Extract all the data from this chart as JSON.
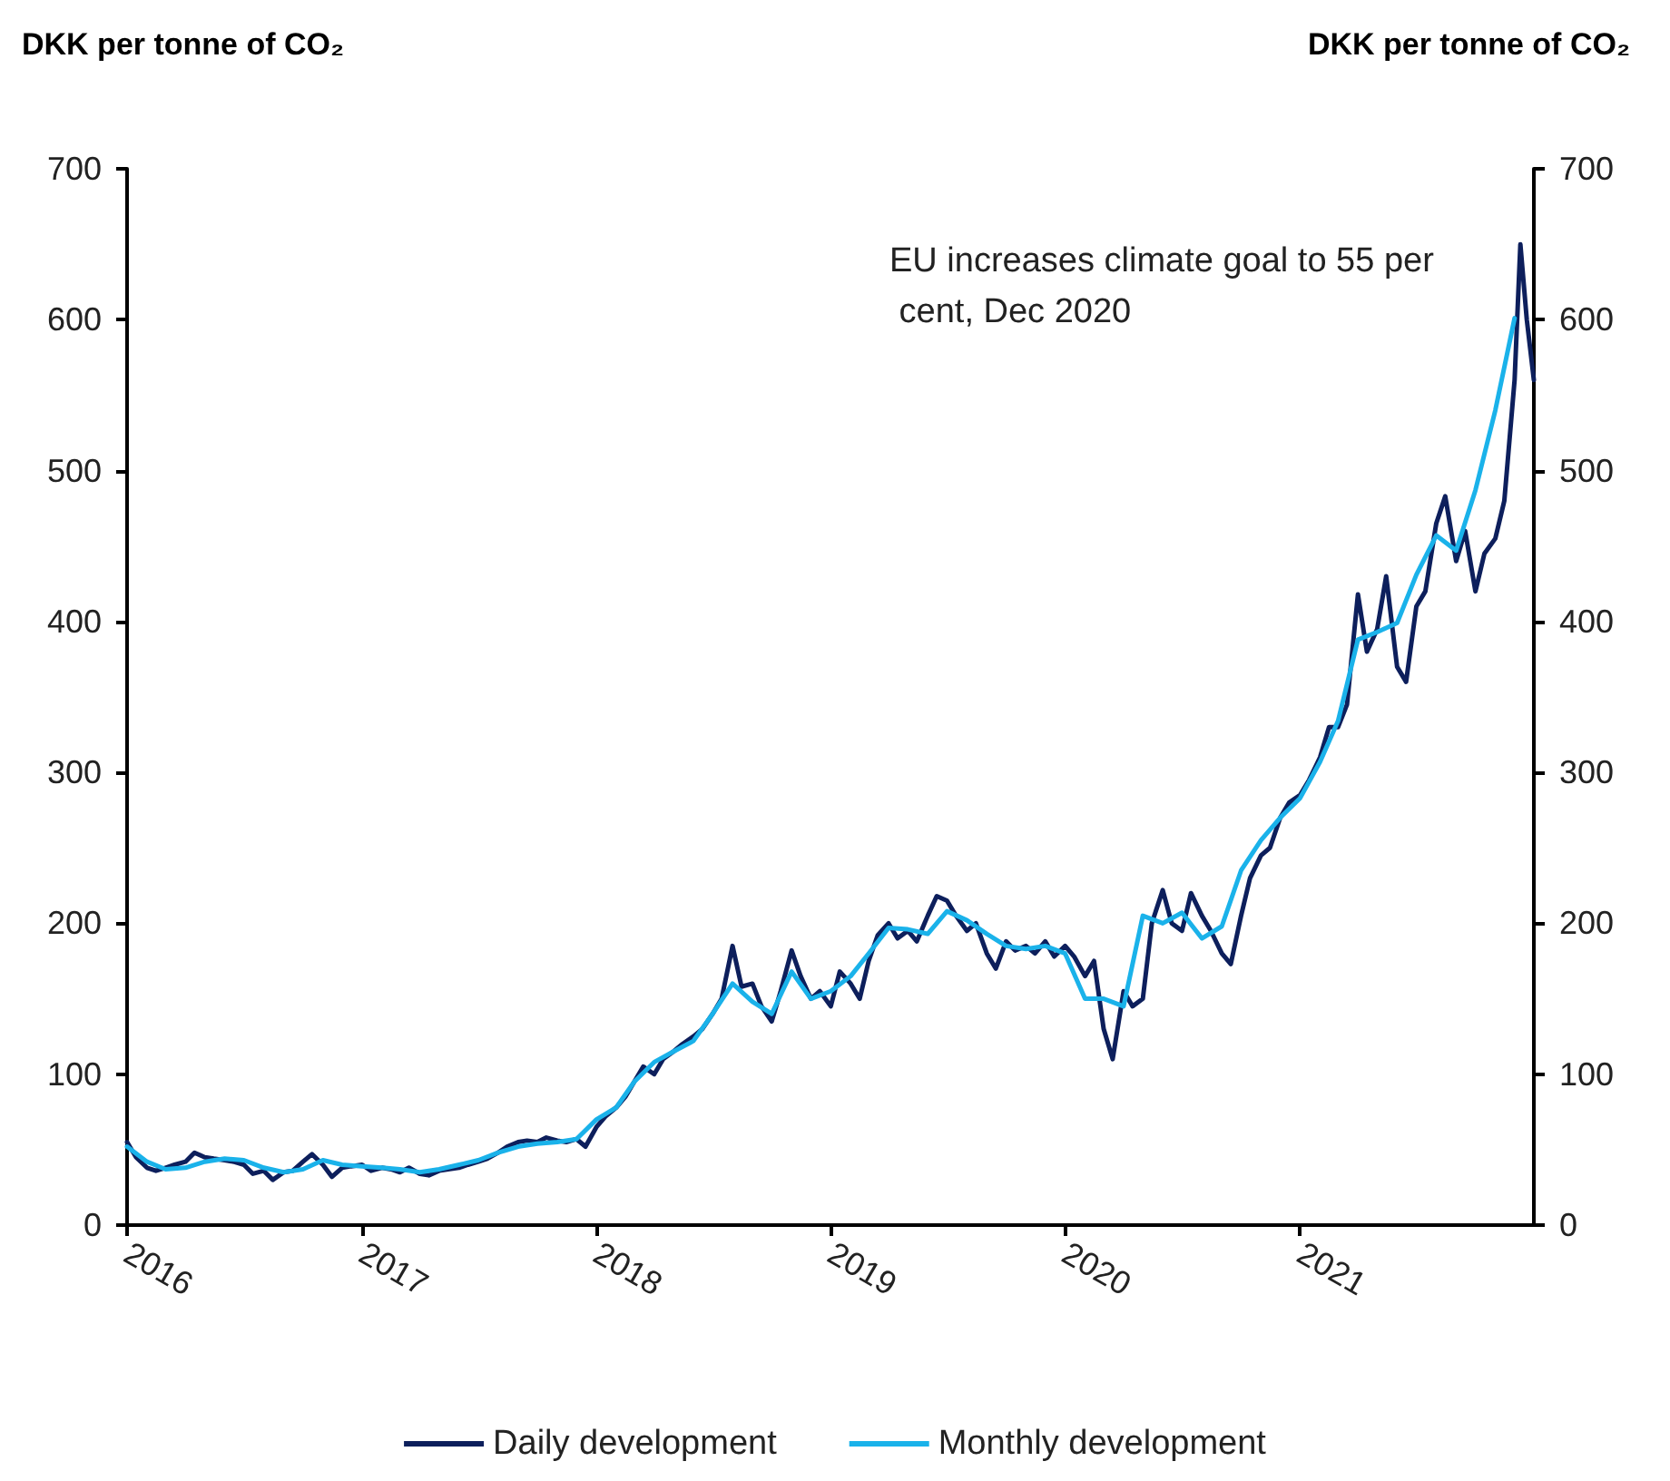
{
  "chart_data": {
    "type": "line",
    "ylabel": "DKK per tonne of CO₂",
    "y2label": "DKK per tonne of CO₂",
    "annotations": [
      "EU increases climate goal to 55 per cent, Dec 2020"
    ],
    "xlim": [
      "2016-01-01",
      "2021-12-31"
    ],
    "xticks": [
      "2016",
      "2017",
      "2018",
      "2019",
      "2020",
      "2021"
    ],
    "ylim": [
      0,
      700
    ],
    "yticks": [
      0,
      100,
      200,
      300,
      400,
      500,
      600,
      700
    ],
    "y2lim": [
      0,
      700
    ],
    "y2ticks": [
      0,
      100,
      200,
      300,
      400,
      500,
      600,
      700
    ],
    "grid": false,
    "legend": "bottom",
    "marker": "none",
    "line_style": "solid",
    "series": [
      {
        "name": "Daily development",
        "color": "#0d1f5c",
        "x": [
          "2016-01-01",
          "2016-01-15",
          "2016-02-01",
          "2016-02-15",
          "2016-03-01",
          "2016-03-15",
          "2016-04-01",
          "2016-04-15",
          "2016-05-01",
          "2016-05-15",
          "2016-06-01",
          "2016-06-15",
          "2016-07-01",
          "2016-07-15",
          "2016-08-01",
          "2016-08-15",
          "2016-09-01",
          "2016-09-15",
          "2016-10-01",
          "2016-10-15",
          "2016-11-01",
          "2016-11-15",
          "2016-12-01",
          "2016-12-15",
          "2017-01-01",
          "2017-01-15",
          "2017-02-01",
          "2017-02-15",
          "2017-03-01",
          "2017-03-15",
          "2017-04-01",
          "2017-04-15",
          "2017-05-01",
          "2017-05-15",
          "2017-06-01",
          "2017-06-15",
          "2017-07-01",
          "2017-07-15",
          "2017-08-01",
          "2017-08-15",
          "2017-09-01",
          "2017-09-15",
          "2017-10-01",
          "2017-10-15",
          "2017-11-01",
          "2017-11-15",
          "2017-12-01",
          "2017-12-15",
          "2018-01-01",
          "2018-01-15",
          "2018-02-01",
          "2018-02-15",
          "2018-03-01",
          "2018-03-15",
          "2018-04-01",
          "2018-04-15",
          "2018-05-01",
          "2018-05-15",
          "2018-06-01",
          "2018-06-15",
          "2018-07-01",
          "2018-07-15",
          "2018-08-01",
          "2018-08-15",
          "2018-09-01",
          "2018-09-15",
          "2018-10-01",
          "2018-10-15",
          "2018-11-01",
          "2018-11-15",
          "2018-12-01",
          "2018-12-15",
          "2019-01-01",
          "2019-01-15",
          "2019-02-01",
          "2019-02-15",
          "2019-03-01",
          "2019-03-15",
          "2019-04-01",
          "2019-04-15",
          "2019-05-01",
          "2019-05-15",
          "2019-06-01",
          "2019-06-15",
          "2019-07-01",
          "2019-07-15",
          "2019-08-01",
          "2019-08-15",
          "2019-09-01",
          "2019-09-15",
          "2019-10-01",
          "2019-10-15",
          "2019-11-01",
          "2019-11-15",
          "2019-12-01",
          "2019-12-15",
          "2020-01-01",
          "2020-01-15",
          "2020-02-01",
          "2020-02-15",
          "2020-03-01",
          "2020-03-15",
          "2020-04-01",
          "2020-04-15",
          "2020-05-01",
          "2020-05-15",
          "2020-06-01",
          "2020-06-15",
          "2020-07-01",
          "2020-07-15",
          "2020-08-01",
          "2020-08-15",
          "2020-09-01",
          "2020-09-15",
          "2020-10-01",
          "2020-10-15",
          "2020-11-01",
          "2020-11-15",
          "2020-12-01",
          "2020-12-15",
          "2021-01-01",
          "2021-01-15",
          "2021-02-01",
          "2021-02-15",
          "2021-03-01",
          "2021-03-15",
          "2021-04-01",
          "2021-04-15",
          "2021-05-01",
          "2021-05-15",
          "2021-06-01",
          "2021-06-15",
          "2021-07-01",
          "2021-07-15",
          "2021-08-01",
          "2021-08-15",
          "2021-09-01",
          "2021-09-15",
          "2021-10-01",
          "2021-10-15",
          "2021-11-01",
          "2021-11-15",
          "2021-12-01",
          "2021-12-10",
          "2021-12-20",
          "2021-12-31"
        ],
        "values": [
          55,
          45,
          38,
          36,
          38,
          40,
          42,
          48,
          45,
          44,
          43,
          42,
          40,
          34,
          36,
          30,
          35,
          36,
          42,
          47,
          40,
          32,
          38,
          39,
          40,
          36,
          38,
          37,
          35,
          38,
          34,
          33,
          36,
          37,
          38,
          40,
          42,
          44,
          48,
          52,
          55,
          56,
          55,
          58,
          56,
          55,
          57,
          52,
          65,
          72,
          78,
          85,
          95,
          105,
          100,
          110,
          115,
          120,
          125,
          130,
          140,
          150,
          185,
          158,
          160,
          145,
          135,
          155,
          182,
          165,
          150,
          155,
          145,
          168,
          160,
          150,
          175,
          192,
          200,
          190,
          195,
          188,
          205,
          218,
          215,
          205,
          195,
          200,
          180,
          170,
          188,
          182,
          185,
          180,
          188,
          178,
          185,
          178,
          165,
          175,
          130,
          110,
          155,
          145,
          150,
          200,
          222,
          200,
          195,
          220,
          205,
          195,
          180,
          173,
          205,
          230,
          245,
          250,
          270,
          280,
          285,
          295,
          310,
          330,
          330,
          345,
          418,
          380,
          395,
          430,
          370,
          360,
          410,
          420,
          465,
          483,
          440,
          460,
          420,
          445,
          455,
          480,
          560,
          650,
          600,
          560
        ]
      },
      {
        "name": "Monthly development",
        "color": "#1ab2ea",
        "x": [
          "2016-01",
          "2016-02",
          "2016-03",
          "2016-04",
          "2016-05",
          "2016-06",
          "2016-07",
          "2016-08",
          "2016-09",
          "2016-10",
          "2016-11",
          "2016-12",
          "2017-01",
          "2017-02",
          "2017-03",
          "2017-04",
          "2017-05",
          "2017-06",
          "2017-07",
          "2017-08",
          "2017-09",
          "2017-10",
          "2017-11",
          "2017-12",
          "2018-01",
          "2018-02",
          "2018-03",
          "2018-04",
          "2018-05",
          "2018-06",
          "2018-07",
          "2018-08",
          "2018-09",
          "2018-10",
          "2018-11",
          "2018-12",
          "2019-01",
          "2019-02",
          "2019-03",
          "2019-04",
          "2019-05",
          "2019-06",
          "2019-07",
          "2019-08",
          "2019-09",
          "2019-10",
          "2019-11",
          "2019-12",
          "2020-01",
          "2020-02",
          "2020-03",
          "2020-04",
          "2020-05",
          "2020-06",
          "2020-07",
          "2020-08",
          "2020-09",
          "2020-10",
          "2020-11",
          "2020-12",
          "2021-01",
          "2021-02",
          "2021-03",
          "2021-04",
          "2021-05",
          "2021-06",
          "2021-07",
          "2021-08",
          "2021-09",
          "2021-10",
          "2021-11",
          "2021-12"
        ],
        "values": [
          52,
          42,
          37,
          38,
          42,
          44,
          43,
          38,
          35,
          37,
          43,
          40,
          39,
          38,
          37,
          35,
          37,
          40,
          43,
          48,
          52,
          54,
          55,
          57,
          70,
          78,
          95,
          108,
          115,
          122,
          140,
          160,
          148,
          140,
          168,
          150,
          155,
          165,
          180,
          197,
          196,
          193,
          208,
          202,
          193,
          185,
          183,
          185,
          180,
          150,
          150,
          145,
          205,
          200,
          207,
          190,
          198,
          235,
          255,
          270,
          283,
          307,
          334,
          388,
          393,
          399,
          431,
          457,
          447,
          487,
          540,
          601
        ]
      }
    ]
  }
}
